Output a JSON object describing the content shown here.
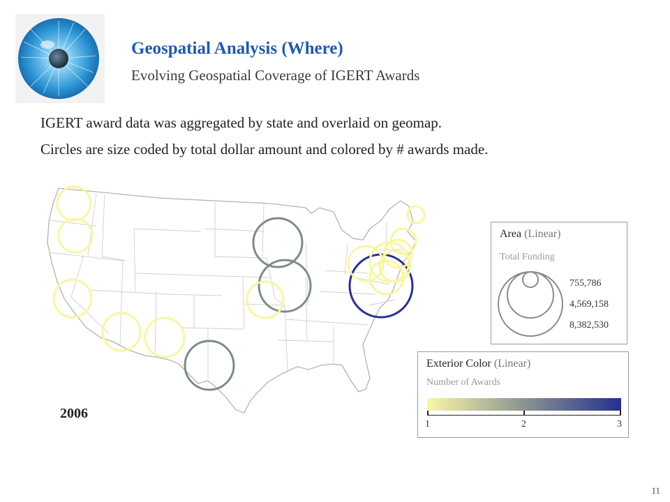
{
  "header": {
    "title": "Geospatial Analysis (Where)",
    "subtitle": "Evolving Geospatial Coverage of IGERT Awards"
  },
  "logo": {
    "icon": "eye-iris-logo"
  },
  "body": {
    "line1": "IGERT award data was aggregated by state and overlaid on geomap.",
    "line2": "Circles are size coded by total dollar amount and colored by # awards made."
  },
  "map": {
    "year": "2006",
    "circle_colors": {
      "1": "#f8f6a2",
      "2": "#7c8a8a",
      "3": "#283090"
    }
  },
  "legend_area": {
    "title": "Area",
    "qualifier": "(Linear)",
    "subtitle": "Total Funding",
    "values": [
      "755,786",
      "4,569,158",
      "8,382,530"
    ]
  },
  "legend_color": {
    "title": "Exterior Color",
    "qualifier": "(Linear)",
    "subtitle": "Number of Awards",
    "ticks": [
      "1",
      "2",
      "3"
    ],
    "gradient": [
      "#fbf7a8",
      "#8a9490",
      "#26308f"
    ]
  },
  "page_number": "11"
}
